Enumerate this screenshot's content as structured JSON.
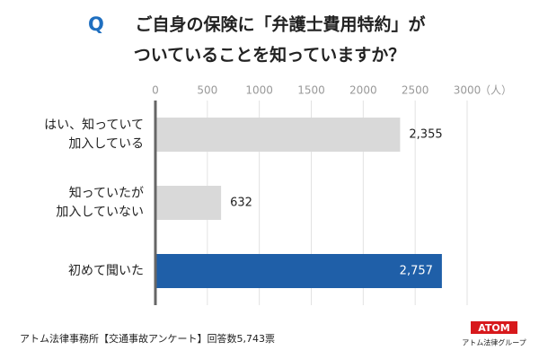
{
  "chart_data": {
    "type": "bar",
    "orientation": "horizontal",
    "title_marker": "Q",
    "title_lines": [
      "ご自身の保険に「弁護士費用特約」が",
      "ついていることを知っていますか？"
    ],
    "categories": [
      [
        "はい、知っていて",
        "加入している"
      ],
      [
        "知っていたが",
        "加入していない"
      ],
      [
        "初めて聞いた"
      ]
    ],
    "values": [
      2355,
      632,
      2757
    ],
    "value_labels": [
      "2,355",
      "632",
      "2,757"
    ],
    "colors": [
      "#d9d9d9",
      "#d9d9d9",
      "#1f5fa8"
    ],
    "highlight": 2,
    "xlim": [
      0,
      3000
    ],
    "xticks": [
      0,
      500,
      1000,
      1500,
      2000,
      2500,
      3000
    ],
    "x_unit": "（人）",
    "grid": true,
    "footer": "アトム法律事務所【交通事故アンケート】回答数5,743票",
    "logo": "ATOM",
    "logo_caption": "アトム法律グループ"
  }
}
